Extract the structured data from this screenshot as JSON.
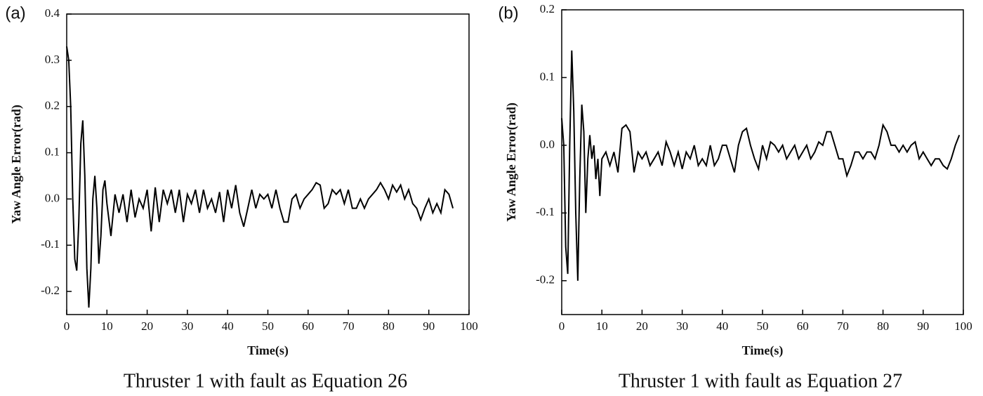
{
  "chart_data": [
    {
      "type": "line",
      "panel_label": "(a)",
      "caption": "Thruster 1 with fault as Equation 26",
      "xlabel": "Time(s)",
      "ylabel": "Yaw Angle Error(rad)",
      "color": "#000000",
      "xlim": [
        0,
        100
      ],
      "ylim": [
        -0.25,
        0.4
      ],
      "xticks": [
        0,
        10,
        20,
        30,
        40,
        50,
        60,
        70,
        80,
        90,
        100
      ],
      "yticks": [
        0.4,
        0.3,
        0.2,
        0.1,
        {
          "value": 0,
          "label": "0.0"
        },
        -0.1,
        -0.2
      ],
      "x": [
        0,
        0.5,
        1,
        1.5,
        2,
        2.5,
        3,
        3.5,
        4,
        4.5,
        5,
        5.5,
        6,
        6.5,
        7,
        7.5,
        8,
        8.5,
        9,
        9.5,
        10,
        11,
        12,
        13,
        14,
        15,
        16,
        17,
        18,
        19,
        20,
        21,
        22,
        23,
        24,
        25,
        26,
        27,
        28,
        29,
        30,
        31,
        32,
        33,
        34,
        35,
        36,
        37,
        38,
        39,
        40,
        41,
        42,
        43,
        44,
        45,
        46,
        47,
        48,
        49,
        50,
        51,
        52,
        53,
        54,
        55,
        56,
        57,
        58,
        59,
        60,
        61,
        62,
        63,
        64,
        65,
        66,
        67,
        68,
        69,
        70,
        71,
        72,
        73,
        74,
        75,
        76,
        77,
        78,
        79,
        80,
        81,
        82,
        83,
        84,
        85,
        86,
        87,
        88,
        89,
        90,
        91,
        92,
        93,
        94,
        95,
        96
      ],
      "values": [
        0.33,
        0.3,
        0.2,
        0.0,
        -0.13,
        -0.155,
        -0.05,
        0.12,
        0.17,
        0.05,
        -0.15,
        -0.235,
        -0.15,
        0.0,
        0.05,
        -0.02,
        -0.14,
        -0.08,
        0.02,
        0.04,
        -0.01,
        -0.08,
        0.01,
        -0.03,
        0.01,
        -0.05,
        0.02,
        -0.04,
        0.0,
        -0.02,
        0.02,
        -0.07,
        0.025,
        -0.05,
        0.02,
        -0.01,
        0.02,
        -0.03,
        0.02,
        -0.05,
        0.01,
        -0.01,
        0.02,
        -0.03,
        0.02,
        -0.02,
        0.0,
        -0.03,
        0.015,
        -0.05,
        0.02,
        -0.02,
        0.03,
        -0.03,
        -0.06,
        -0.02,
        0.02,
        -0.02,
        0.01,
        0.0,
        0.01,
        -0.02,
        0.02,
        -0.02,
        -0.05,
        -0.05,
        0.0,
        0.01,
        -0.02,
        0.0,
        0.01,
        0.02,
        0.035,
        0.03,
        -0.02,
        -0.01,
        0.02,
        0.01,
        0.02,
        -0.01,
        0.02,
        -0.02,
        -0.02,
        0.0,
        -0.02,
        0.0,
        0.01,
        0.02,
        0.035,
        0.02,
        0.0,
        0.03,
        0.015,
        0.03,
        0.0,
        0.02,
        -0.01,
        -0.02,
        -0.045,
        -0.02,
        0.0,
        -0.03,
        -0.01,
        -0.03,
        0.02,
        0.01,
        -0.02
      ]
    },
    {
      "type": "line",
      "panel_label": "(b)",
      "caption": "Thruster 1 with fault as Equation 27",
      "xlabel": "Time(s)",
      "ylabel": "Yaw Angle Error(rad)",
      "color": "#000000",
      "xlim": [
        0,
        100
      ],
      "ylim": [
        -0.25,
        0.2
      ],
      "xticks": [
        0,
        10,
        20,
        30,
        40,
        50,
        60,
        70,
        80,
        90,
        100
      ],
      "yticks": [
        0.2,
        0.1,
        {
          "value": 0,
          "label": "0.0"
        },
        -0.1,
        -0.2
      ],
      "x": [
        0,
        0.5,
        1,
        1.5,
        2,
        2.5,
        3,
        3.5,
        4,
        4.5,
        5,
        5.5,
        6,
        6.5,
        7,
        7.5,
        8,
        8.5,
        9,
        9.5,
        10,
        11,
        12,
        13,
        14,
        15,
        16,
        17,
        18,
        19,
        20,
        21,
        22,
        23,
        24,
        25,
        26,
        27,
        28,
        29,
        30,
        31,
        32,
        33,
        34,
        35,
        36,
        37,
        38,
        39,
        40,
        41,
        42,
        43,
        44,
        45,
        46,
        47,
        48,
        49,
        50,
        51,
        52,
        53,
        54,
        55,
        56,
        57,
        58,
        59,
        60,
        61,
        62,
        63,
        64,
        65,
        66,
        67,
        68,
        69,
        70,
        71,
        72,
        73,
        74,
        75,
        76,
        77,
        78,
        79,
        80,
        81,
        82,
        83,
        84,
        85,
        86,
        87,
        88,
        89,
        90,
        91,
        92,
        93,
        94,
        95,
        96,
        97,
        98,
        99
      ],
      "values": [
        0.04,
        0.0,
        -0.15,
        -0.19,
        0.0,
        0.14,
        0.05,
        -0.1,
        -0.2,
        -0.05,
        0.06,
        0.02,
        -0.1,
        -0.02,
        0.015,
        -0.02,
        0.0,
        -0.05,
        -0.02,
        -0.075,
        -0.02,
        -0.01,
        -0.03,
        -0.01,
        -0.04,
        0.025,
        0.03,
        0.02,
        -0.04,
        -0.01,
        -0.02,
        -0.01,
        -0.03,
        -0.02,
        -0.01,
        -0.03,
        0.005,
        -0.01,
        -0.03,
        -0.01,
        -0.035,
        -0.01,
        -0.02,
        0.0,
        -0.03,
        -0.02,
        -0.03,
        0.0,
        -0.03,
        -0.02,
        0.0,
        0.0,
        -0.02,
        -0.04,
        0.0,
        0.02,
        0.025,
        0.0,
        -0.02,
        -0.035,
        0.0,
        -0.02,
        0.005,
        0.0,
        -0.01,
        0.0,
        -0.02,
        -0.01,
        0.0,
        -0.02,
        -0.01,
        0.0,
        -0.02,
        -0.01,
        0.005,
        0.0,
        0.02,
        0.02,
        0.0,
        -0.02,
        -0.02,
        -0.045,
        -0.03,
        -0.01,
        -0.01,
        -0.02,
        -0.01,
        -0.01,
        -0.02,
        0.0,
        0.03,
        0.02,
        0.0,
        0.0,
        -0.01,
        0.0,
        -0.01,
        0.0,
        0.005,
        -0.02,
        -0.01,
        -0.02,
        -0.03,
        -0.02,
        -0.02,
        -0.03,
        -0.035,
        -0.02,
        0.0,
        0.015
      ]
    }
  ]
}
